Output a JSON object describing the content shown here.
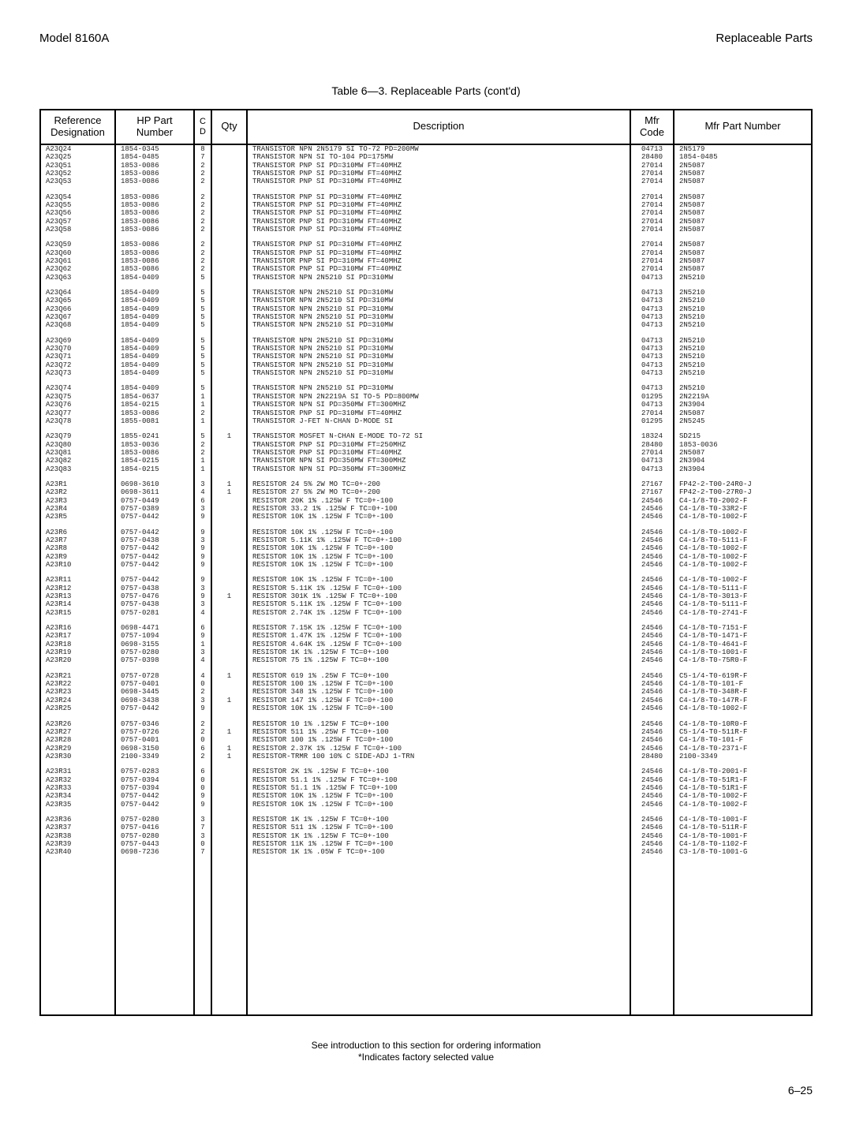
{
  "header": {
    "left": "Model 8160A",
    "right": "Replaceable Parts"
  },
  "caption": "Table 6—3. Replaceable Parts (cont'd)",
  "columns": {
    "ref": "Reference\nDesignation",
    "hp": "HP Part\nNumber",
    "cd": "C\nD",
    "qty": "Qty",
    "desc": "Description",
    "mfr": "Mfr\nCode",
    "mpn": "Mfr Part Number"
  },
  "groups": [
    [
      [
        "A23Q24",
        "1854-0345",
        "8",
        "",
        "TRANSISTOR NPN 2N5179 SI TO-72 PD=200MW",
        "04713",
        "2N5179"
      ],
      [
        "A23Q25",
        "1854-0485",
        "7",
        "",
        "TRANSISTOR NPN SI TO-104 PD=175MW",
        "28480",
        "1854-0485"
      ],
      [
        "A23Q51",
        "1853-0086",
        "2",
        "",
        "TRANSISTOR PNP SI PD=310MW FT=40MHZ",
        "27014",
        "2N5087"
      ],
      [
        "A23Q52",
        "1853-0086",
        "2",
        "",
        "TRANSISTOR PNP SI PD=310MW FT=40MHZ",
        "27014",
        "2N5087"
      ],
      [
        "A23Q53",
        "1853-0086",
        "2",
        "",
        "TRANSISTOR PNP SI PD=310MW FT=40MHZ",
        "27014",
        "2N5087"
      ]
    ],
    [
      [
        "A23Q54",
        "1853-0086",
        "2",
        "",
        "TRANSISTOR PNP SI PD=310MW FT=40MHZ",
        "27014",
        "2N5087"
      ],
      [
        "A23Q55",
        "1853-0086",
        "2",
        "",
        "TRANSISTOR PNP SI PD=310MW FT=40MHZ",
        "27014",
        "2N5087"
      ],
      [
        "A23Q56",
        "1853-0086",
        "2",
        "",
        "TRANSISTOR PNP SI PD=310MW FT=40MHZ",
        "27014",
        "2N5087"
      ],
      [
        "A23Q57",
        "1853-0086",
        "2",
        "",
        "TRANSISTOR PNP SI PD=310MW FT=40MHZ",
        "27014",
        "2N5087"
      ],
      [
        "A23Q58",
        "1853-0086",
        "2",
        "",
        "TRANSISTOR PNP SI PD=310MW FT=40MHZ",
        "27014",
        "2N5087"
      ]
    ],
    [
      [
        "A23Q59",
        "1853-0086",
        "2",
        "",
        "TRANSISTOR PNP SI PD=310MW FT=40MHZ",
        "27014",
        "2N5087"
      ],
      [
        "A23Q60",
        "1853-0086",
        "2",
        "",
        "TRANSISTOR PNP SI PD=310MW FT=40MHZ",
        "27014",
        "2N5087"
      ],
      [
        "A23Q61",
        "1853-0086",
        "2",
        "",
        "TRANSISTOR PNP SI PD=310MW FT=40MHZ",
        "27014",
        "2N5087"
      ],
      [
        "A23Q62",
        "1853-0086",
        "2",
        "",
        "TRANSISTOR PNP SI PD=310MW FT=40MHZ",
        "27014",
        "2N5087"
      ],
      [
        "A23Q63",
        "1854-0409",
        "5",
        "",
        "TRANSISTOR NPN 2N5210 SI PD=310MW",
        "04713",
        "2N5210"
      ]
    ],
    [
      [
        "A23Q64",
        "1854-0409",
        "5",
        "",
        "TRANSISTOR NPN 2N5210 SI PD=310MW",
        "04713",
        "2N5210"
      ],
      [
        "A23Q65",
        "1854-0409",
        "5",
        "",
        "TRANSISTOR NPN 2N5210 SI PD=310MW",
        "04713",
        "2N5210"
      ],
      [
        "A23Q66",
        "1854-0409",
        "5",
        "",
        "TRANSISTOR NPN 2N5210 SI PD=310MW",
        "04713",
        "2N5210"
      ],
      [
        "A23Q67",
        "1854-0409",
        "5",
        "",
        "TRANSISTOR NPN 2N5210 SI PD=310MW",
        "04713",
        "2N5210"
      ],
      [
        "A23Q68",
        "1854-0409",
        "5",
        "",
        "TRANSISTOR NPN 2N5210 SI PD=310MW",
        "04713",
        "2N5210"
      ]
    ],
    [
      [
        "A23Q69",
        "1854-0409",
        "5",
        "",
        "TRANSISTOR NPN 2N5210 SI PD=310MW",
        "04713",
        "2N5210"
      ],
      [
        "A23Q70",
        "1854-0409",
        "5",
        "",
        "TRANSISTOR NPN 2N5210 SI PD=310MW",
        "04713",
        "2N5210"
      ],
      [
        "A23Q71",
        "1854-0409",
        "5",
        "",
        "TRANSISTOR NPN 2N5210 SI PD=310MW",
        "04713",
        "2N5210"
      ],
      [
        "A23Q72",
        "1854-0409",
        "5",
        "",
        "TRANSISTOR NPN 2N5210 SI PD=310MW",
        "04713",
        "2N5210"
      ],
      [
        "A23Q73",
        "1854-0409",
        "5",
        "",
        "TRANSISTOR NPN 2N5210 SI PD=310MW",
        "04713",
        "2N5210"
      ]
    ],
    [
      [
        "A23Q74",
        "1854-0409",
        "5",
        "",
        "TRANSISTOR NPN 2N5210 SI PD=310MW",
        "04713",
        "2N5210"
      ],
      [
        "A23Q75",
        "1854-0637",
        "1",
        "",
        "TRANSISTOR NPN 2N2219A SI TO-5 PD=800MW",
        "01295",
        "2N2219A"
      ],
      [
        "A23Q76",
        "1854-0215",
        "1",
        "",
        "TRANSISTOR NPN SI PD=350MW FT=300MHZ",
        "04713",
        "2N3904"
      ],
      [
        "A23Q77",
        "1853-0086",
        "2",
        "",
        "TRANSISTOR PNP SI PD=310MW FT=40MHZ",
        "27014",
        "2N5087"
      ],
      [
        "A23Q78",
        "1855-0081",
        "1",
        "",
        "TRANSISTOR J-FET N-CHAN D-MODE SI",
        "01295",
        "2N5245"
      ]
    ],
    [
      [
        "A23Q79",
        "1855-0241",
        "5",
        "1",
        "TRANSISTOR MOSFET N-CHAN E-MODE TO-72 SI",
        "18324",
        "SD215"
      ],
      [
        "A23Q80",
        "1853-0036",
        "2",
        "",
        "TRANSISTOR PNP SI PD=310MW FT=250MHZ",
        "28480",
        "1853-0036"
      ],
      [
        "A23Q81",
        "1853-0086",
        "2",
        "",
        "TRANSISTOR PNP SI PD=310MW FT=40MHZ",
        "27014",
        "2N5087"
      ],
      [
        "A23Q82",
        "1854-0215",
        "1",
        "",
        "TRANSISTOR NPN SI PD=350MW FT=300MHZ",
        "04713",
        "2N3904"
      ],
      [
        "A23Q83",
        "1854-0215",
        "1",
        "",
        "TRANSISTOR NPN SI PD=350MW FT=300MHZ",
        "04713",
        "2N3904"
      ]
    ],
    [
      [
        "A23R1",
        "0698-3610",
        "3",
        "1",
        "RESISTOR 24 5% 2W MO TC=0+-200",
        "27167",
        "FP42-2-T00-24R0-J"
      ],
      [
        "A23R2",
        "0698-3611",
        "4",
        "1",
        "RESISTOR 27 5% 2W MO TC=0+-200",
        "27167",
        "FP42-2-T00-27R0-J"
      ],
      [
        "A23R3",
        "0757-0449",
        "6",
        "",
        "RESISTOR 20K 1% .125W F TC=0+-100",
        "24546",
        "C4-1/8-T0-2002-F"
      ],
      [
        "A23R4",
        "0757-0389",
        "3",
        "",
        "RESISTOR 33.2 1% .125W F TC=0+-100",
        "24546",
        "C4-1/8-T0-33R2-F"
      ],
      [
        "A23R5",
        "0757-0442",
        "9",
        "",
        "RESISTOR 10K 1% .125W F TC=0+-100",
        "24546",
        "C4-1/8-T0-1002-F"
      ]
    ],
    [
      [
        "A23R6",
        "0757-0442",
        "9",
        "",
        "RESISTOR 10K 1% .125W F TC=0+-100",
        "24546",
        "C4-1/8-T0-1002-F"
      ],
      [
        "A23R7",
        "0757-0438",
        "3",
        "",
        "RESISTOR 5.11K 1% .125W F TC=0+-100",
        "24546",
        "C4-1/8-T0-5111-F"
      ],
      [
        "A23R8",
        "0757-0442",
        "9",
        "",
        "RESISTOR 10K 1% .125W F TC=0+-100",
        "24546",
        "C4-1/8-T0-1002-F"
      ],
      [
        "A23R9",
        "0757-0442",
        "9",
        "",
        "RESISTOR 10K 1% .125W F TC=0+-100",
        "24546",
        "C4-1/8-T0-1002-F"
      ],
      [
        "A23R10",
        "0757-0442",
        "9",
        "",
        "RESISTOR 10K 1% .125W F TC=0+-100",
        "24546",
        "C4-1/8-T0-1002-F"
      ]
    ],
    [
      [
        "A23R11",
        "0757-0442",
        "9",
        "",
        "RESISTOR 10K 1% .125W F TC=0+-100",
        "24546",
        "C4-1/8-T0-1002-F"
      ],
      [
        "A23R12",
        "0757-0438",
        "3",
        "",
        "RESISTOR 5.11K 1% .125W F TC=0+-100",
        "24546",
        "C4-1/8-T0-5111-F"
      ],
      [
        "A23R13",
        "0757-0476",
        "9",
        "1",
        "RESISTOR 301K 1% .125W F TC=0+-100",
        "24546",
        "C4-1/8-T0-3013-F"
      ],
      [
        "A23R14",
        "0757-0438",
        "3",
        "",
        "RESISTOR 5.11K 1% .125W F TC=0+-100",
        "24546",
        "C4-1/8-T0-5111-F"
      ],
      [
        "A23R15",
        "0757-0281",
        "4",
        "",
        "RESISTOR 2.74K 1% .125W F TC=0+-100",
        "24546",
        "C4-1/8-T0-2741-F"
      ]
    ],
    [
      [
        "A23R16",
        "0698-4471",
        "6",
        "",
        "RESISTOR 7.15K 1% .125W F TC=0+-100",
        "24546",
        "C4-1/8-T0-7151-F"
      ],
      [
        "A23R17",
        "0757-1094",
        "9",
        "",
        "RESISTOR 1.47K 1% .125W F TC=0+-100",
        "24546",
        "C4-1/8-T0-1471-F"
      ],
      [
        "A23R18",
        "0698-3155",
        "1",
        "",
        "RESISTOR 4.64K 1% .125W F TC=0+-100",
        "24546",
        "C4-1/8-T0-4641-F"
      ],
      [
        "A23R19",
        "0757-0280",
        "3",
        "",
        "RESISTOR 1K 1% .125W F TC=0+-100",
        "24546",
        "C4-1/8-T0-1001-F"
      ],
      [
        "A23R20",
        "0757-0398",
        "4",
        "",
        "RESISTOR 75 1% .125W F TC=0+-100",
        "24546",
        "C4-1/8-T0-75R0-F"
      ]
    ],
    [
      [
        "A23R21",
        "0757-0728",
        "4",
        "1",
        "RESISTOR 619 1% .25W F TC=0+-100",
        "24546",
        "C5-1/4-T0-619R-F"
      ],
      [
        "A23R22",
        "0757-0401",
        "0",
        "",
        "RESISTOR 100 1% .125W F TC=0+-100",
        "24546",
        "C4-1/8-T0-101-F"
      ],
      [
        "A23R23",
        "0698-3445",
        "2",
        "",
        "RESISTOR 348 1% .125W F TC=0+-100",
        "24546",
        "C4-1/8-T0-348R-F"
      ],
      [
        "A23R24",
        "0698-3438",
        "3",
        "1",
        "RESISTOR 147 1% .125W F TC=0+-100",
        "24546",
        "C4-1/8-T0-147R-F"
      ],
      [
        "A23R25",
        "0757-0442",
        "9",
        "",
        "RESISTOR 10K 1% .125W F TC=0+-100",
        "24546",
        "C4-1/8-T0-1002-F"
      ]
    ],
    [
      [
        "A23R26",
        "0757-0346",
        "2",
        "",
        "RESISTOR 10 1% .125W F TC=0+-100",
        "24546",
        "C4-1/8-T0-10R0-F"
      ],
      [
        "A23R27",
        "0757-0726",
        "2",
        "1",
        "RESISTOR 511 1% .25W F TC=0+-100",
        "24546",
        "C5-1/4-T0-511R-F"
      ],
      [
        "A23R28",
        "0757-0401",
        "0",
        "",
        "RESISTOR 100 1% .125W F TC=0+-100",
        "24546",
        "C4-1/8-T0-101-F"
      ],
      [
        "A23R29",
        "0698-3150",
        "6",
        "1",
        "RESISTOR 2.37K 1% .125W F TC=0+-100",
        "24546",
        "C4-1/8-T0-2371-F"
      ],
      [
        "A23R30",
        "2100-3349",
        "2",
        "1",
        "RESISTOR-TRMR 100 10% C SIDE-ADJ 1-TRN",
        "28480",
        "2100-3349"
      ]
    ],
    [
      [
        "A23R31",
        "0757-0283",
        "6",
        "",
        "RESISTOR 2K 1% .125W F TC=0+-100",
        "24546",
        "C4-1/8-T0-2001-F"
      ],
      [
        "A23R32",
        "0757-0394",
        "0",
        "",
        "RESISTOR 51.1 1% .125W F TC=0+-100",
        "24546",
        "C4-1/8-T0-51R1-F"
      ],
      [
        "A23R33",
        "0757-0394",
        "0",
        "",
        "RESISTOR 51.1 1% .125W F TC=0+-100",
        "24546",
        "C4-1/8-T0-51R1-F"
      ],
      [
        "A23R34",
        "0757-0442",
        "9",
        "",
        "RESISTOR 10K 1% .125W F TC=0+-100",
        "24546",
        "C4-1/8-T0-1002-F"
      ],
      [
        "A23R35",
        "0757-0442",
        "9",
        "",
        "RESISTOR 10K 1% .125W F TC=0+-100",
        "24546",
        "C4-1/8-T0-1002-F"
      ]
    ],
    [
      [
        "A23R36",
        "0757-0280",
        "3",
        "",
        "RESISTOR 1K 1% .125W F TC=0+-100",
        "24546",
        "C4-1/8-T0-1001-F"
      ],
      [
        "A23R37",
        "0757-0416",
        "7",
        "",
        "RESISTOR 511 1% .125W F TC=0+-100",
        "24546",
        "C4-1/8-T0-511R-F"
      ],
      [
        "A23R38",
        "0757-0280",
        "3",
        "",
        "RESISTOR 1K 1% .125W F TC=0+-100",
        "24546",
        "C4-1/8-T0-1001-F"
      ],
      [
        "A23R39",
        "0757-0443",
        "0",
        "",
        "RESISTOR 11K 1% .125W F TC=0+-100",
        "24546",
        "C4-1/8-T0-1102-F"
      ],
      [
        "A23R40",
        "0698-7236",
        "7",
        "",
        "RESISTOR 1K 1% .05W F TC=0+-100",
        "24546",
        "C3-1/8-T0-1001-G"
      ]
    ]
  ],
  "footnote": {
    "line1": "See introduction to this section for ordering information",
    "line2": "*Indicates factory selected value"
  },
  "pagenum": "6–25"
}
